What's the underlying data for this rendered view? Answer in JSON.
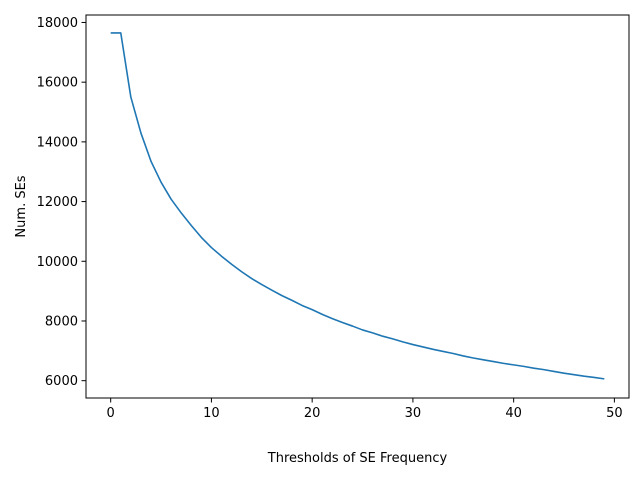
{
  "chart_data": {
    "type": "line",
    "title": "",
    "xlabel": "Thresholds of SE Frequency",
    "ylabel": "Num. SEs",
    "xlim": [
      -2.45,
      51.45
    ],
    "ylim": [
      5420,
      18250
    ],
    "xticks": [
      0,
      10,
      20,
      30,
      40,
      50
    ],
    "yticks": [
      6000,
      8000,
      10000,
      12000,
      14000,
      16000,
      18000
    ],
    "grid": false,
    "legend": "none",
    "colors": {
      "line": "#1f77b4",
      "axes": "#000000",
      "background": "#ffffff"
    },
    "series": [
      {
        "x": [
          0,
          1,
          2,
          3,
          4,
          5,
          6,
          7,
          8,
          9,
          10,
          11,
          12,
          13,
          14,
          15,
          16,
          17,
          18,
          19,
          20,
          21,
          22,
          23,
          24,
          25,
          26,
          27,
          28,
          29,
          30,
          31,
          32,
          33,
          34,
          35,
          36,
          37,
          38,
          39,
          40,
          41,
          42,
          43,
          44,
          45,
          46,
          47,
          48,
          49
        ],
        "values": [
          17650,
          17650,
          15500,
          14300,
          13350,
          12650,
          12080,
          11620,
          11200,
          10800,
          10460,
          10170,
          9900,
          9650,
          9420,
          9220,
          9030,
          8850,
          8690,
          8520,
          8380,
          8220,
          8080,
          7950,
          7830,
          7700,
          7600,
          7490,
          7400,
          7300,
          7210,
          7130,
          7050,
          6980,
          6910,
          6830,
          6760,
          6700,
          6640,
          6580,
          6530,
          6480,
          6420,
          6370,
          6310,
          6250,
          6200,
          6150,
          6110,
          6060
        ]
      }
    ]
  }
}
